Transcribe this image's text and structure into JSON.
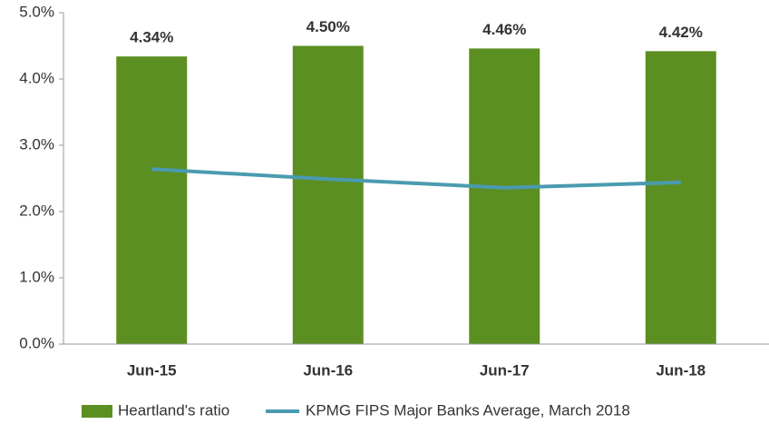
{
  "chart_data": {
    "type": "bar",
    "categories": [
      "Jun-15",
      "Jun-16",
      "Jun-17",
      "Jun-18"
    ],
    "series": [
      {
        "name": "Heartland's ratio",
        "color": "#5b8f22",
        "values": [
          4.34,
          4.5,
          4.46,
          4.42
        ],
        "value_labels": [
          "4.34%",
          "4.50%",
          "4.46%",
          "4.42%"
        ]
      },
      {
        "name": "KPMG FIPS Major Banks Average, March 2018",
        "color": "#4a9bb0",
        "type": "line",
        "values": [
          2.64,
          2.49,
          2.36,
          2.44
        ]
      }
    ],
    "ylim": [
      0,
      5
    ],
    "yticks": [
      {
        "value": 0,
        "label": "0.0%"
      },
      {
        "value": 1,
        "label": "1.0%"
      },
      {
        "value": 2,
        "label": "2.0%"
      },
      {
        "value": 3,
        "label": "3.0%"
      },
      {
        "value": 4,
        "label": "4.0%"
      },
      {
        "value": 5,
        "label": "5.0%"
      }
    ],
    "legend": "bottom"
  }
}
